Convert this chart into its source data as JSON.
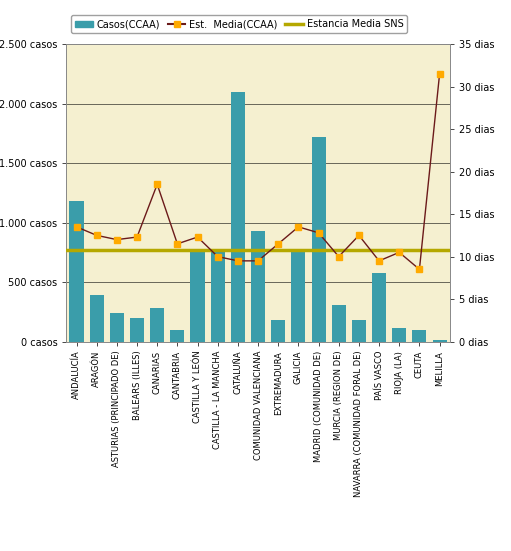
{
  "categories": [
    "ANDALUCÍA",
    "ARAGÓN",
    "ASTURIAS (PRINCIPADO DE)",
    "BALEARS (ILLES)",
    "CANARIAS",
    "CANTABRIA",
    "CASTILLA Y LEÓN",
    "CASTILLA - LA MANCHA",
    "CATALUÑA",
    "COMUNIDAD VALENCIANA",
    "EXTREMADURA",
    "GALICIA",
    "MADRID (COMUNIDAD DE)",
    "MURCIA (REGION DE)",
    "NAVARRA (COMUNIDAD FORAL DE)",
    "PAÍS VASCO",
    "RIOJA (LA)",
    "CEUTA",
    "MELILLA"
  ],
  "casos": [
    1180,
    390,
    240,
    200,
    280,
    100,
    750,
    760,
    2100,
    930,
    185,
    760,
    1720,
    305,
    185,
    575,
    115,
    100,
    15
  ],
  "est_media_ccaa": [
    13.5,
    12.5,
    12.0,
    12.3,
    18.5,
    11.5,
    12.3,
    10.0,
    9.5,
    9.5,
    11.5,
    13.5,
    12.8,
    10.0,
    12.5,
    9.5,
    10.5,
    8.5,
    31.5
  ],
  "estancia_media_sns": 10.8,
  "bar_color": "#3a9daa",
  "line_color": "#6b1a1a",
  "marker_color": "#ffaa00",
  "sns_line_color": "#b5a800",
  "background_color": "#f5f0d0",
  "fig_background": "#ffffff",
  "ylim_left": [
    0,
    2500
  ],
  "ylim_right": [
    0,
    35
  ],
  "yticks_left": [
    0,
    500,
    1000,
    1500,
    2000,
    2500
  ],
  "ytick_labels_left": [
    "0 casos",
    "500 casos",
    "1.000 casos",
    "1.500 casos",
    "2.000 casos",
    "2.500 casos"
  ],
  "yticks_right": [
    0,
    5,
    10,
    15,
    20,
    25,
    30,
    35
  ],
  "ytick_labels_right": [
    "0 dias",
    "5 dias",
    "10 dias",
    "15 dias",
    "20 dias",
    "25 dias",
    "30 dias",
    "35 dias"
  ],
  "legend_bar_label": "Casos(CCAA)",
  "legend_line_label": "Est.  Media(CCAA)",
  "legend_sns_label": "Estancia Media SNS"
}
